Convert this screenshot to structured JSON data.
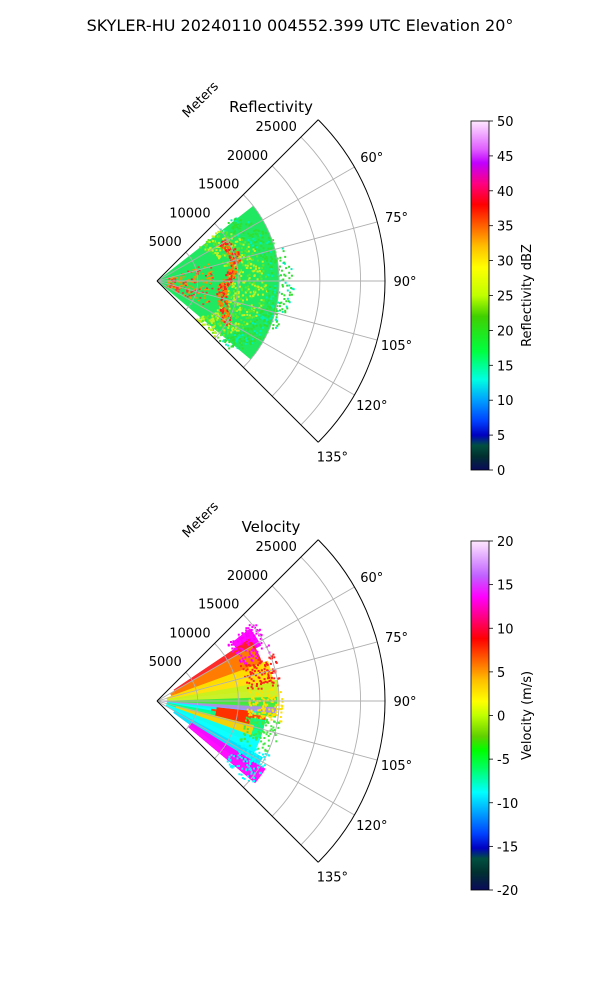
{
  "figure": {
    "suptitle": "SKYLER-HU  20240110  004552.399 UTC Elevation 20°"
  },
  "chart_data": [
    {
      "type": "heatmap",
      "projection": "polar-sector",
      "title": "Reflectivity",
      "radial_label": "Meters",
      "radial_ticks": [
        "5000",
        "10000",
        "15000",
        "20000",
        "25000"
      ],
      "radial_range": [
        0,
        28000
      ],
      "angle_ticks": [
        "60°",
        "75°",
        "90°",
        "105°",
        "120°",
        "135°"
      ],
      "angle_range": [
        45,
        135
      ],
      "grid": true,
      "colorbar": {
        "label": "Reflectivity dBZ",
        "ticks": [
          "0",
          "5",
          "10",
          "15",
          "20",
          "25",
          "30",
          "35",
          "40",
          "45",
          "50"
        ],
        "range": [
          0,
          50
        ]
      }
    },
    {
      "type": "heatmap",
      "projection": "polar-sector",
      "title": "Velocity",
      "radial_label": "Meters",
      "radial_ticks": [
        "5000",
        "10000",
        "15000",
        "20000",
        "25000"
      ],
      "radial_range": [
        0,
        28000
      ],
      "angle_ticks": [
        "60°",
        "75°",
        "90°",
        "105°",
        "120°",
        "135°"
      ],
      "angle_range": [
        45,
        135
      ],
      "grid": true,
      "colorbar": {
        "label": "Velocity (m/s)",
        "ticks": [
          "-20",
          "-15",
          "-10",
          "-5",
          "0",
          "5",
          "10",
          "15",
          "20"
        ],
        "range": [
          -20,
          20
        ]
      }
    }
  ]
}
